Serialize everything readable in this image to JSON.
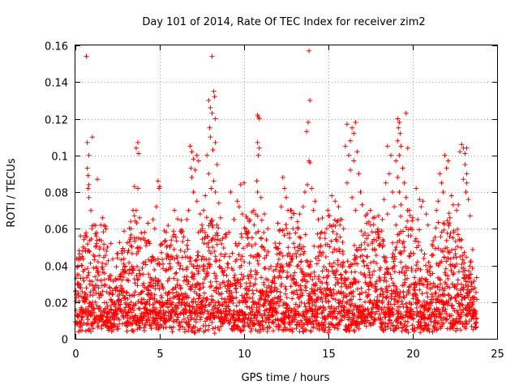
{
  "chart_data": {
    "type": "scatter",
    "title": "Day 101 of 2014, Rate Of TEC Index for receiver zim2",
    "xlabel": "GPS time / hours",
    "ylabel": "ROTI / TECUs",
    "xlim": [
      0,
      25
    ],
    "ylim": [
      0,
      0.16
    ],
    "xticks": [
      0,
      5,
      10,
      15,
      20,
      25
    ],
    "xtick_labels": [
      "0",
      "5",
      "10",
      "15",
      "20",
      "25"
    ],
    "yticks": [
      0,
      0.02,
      0.04,
      0.06,
      0.08,
      0.1,
      0.12,
      0.14,
      0.16
    ],
    "ytick_labels": [
      "0",
      "0.02",
      "0.04",
      "0.06",
      "0.08",
      "0.1",
      "0.12",
      "0.14",
      "0.16"
    ],
    "grid": true,
    "marker": "plus",
    "color": "#ff0000",
    "series": [
      {
        "name": "ROTI",
        "points": [
          [
            0.65,
            0.154
          ],
          [
            0.7,
            0.107
          ],
          [
            0.8,
            0.1
          ],
          [
            0.7,
            0.093
          ],
          [
            0.75,
            0.089
          ],
          [
            0.8,
            0.084
          ],
          [
            0.75,
            0.082
          ],
          [
            0.8,
            0.077
          ],
          [
            1.0,
            0.11
          ],
          [
            1.3,
            0.087
          ],
          [
            0.3,
            0.056
          ],
          [
            0.5,
            0.054
          ],
          [
            0.2,
            0.043
          ],
          [
            0.35,
            0.04
          ],
          [
            0.1,
            0.035
          ],
          [
            0.2,
            0.03
          ],
          [
            0.4,
            0.045
          ],
          [
            0.45,
            0.05
          ],
          [
            1.1,
            0.062
          ],
          [
            1.5,
            0.062
          ],
          [
            1.6,
            0.066
          ],
          [
            1.9,
            0.05
          ],
          [
            2.1,
            0.052
          ],
          [
            1.2,
            0.05
          ],
          [
            3.7,
            0.107
          ],
          [
            3.6,
            0.104
          ],
          [
            3.75,
            0.101
          ],
          [
            3.7,
            0.082
          ],
          [
            3.5,
            0.083
          ],
          [
            3.6,
            0.07
          ],
          [
            3.8,
            0.066
          ],
          [
            3.3,
            0.06
          ],
          [
            4.1,
            0.058
          ],
          [
            4.4,
            0.052
          ],
          [
            3.1,
            0.047
          ],
          [
            2.9,
            0.048
          ],
          [
            4.3,
            0.063
          ],
          [
            3.2,
            0.053
          ],
          [
            4.9,
            0.086
          ],
          [
            4.95,
            0.082
          ],
          [
            5.0,
            0.083
          ],
          [
            4.8,
            0.072
          ],
          [
            4.6,
            0.065
          ],
          [
            4.7,
            0.06
          ],
          [
            5.3,
            0.053
          ],
          [
            5.6,
            0.05
          ],
          [
            5.1,
            0.047
          ],
          [
            5.5,
            0.045
          ],
          [
            6.8,
            0.105
          ],
          [
            6.9,
            0.102
          ],
          [
            7.0,
            0.098
          ],
          [
            6.85,
            0.093
          ],
          [
            7.2,
            0.1
          ],
          [
            7.3,
            0.097
          ],
          [
            7.1,
            0.092
          ],
          [
            6.9,
            0.088
          ],
          [
            7.0,
            0.08
          ],
          [
            7.2,
            0.075
          ],
          [
            6.7,
            0.07
          ],
          [
            7.4,
            0.068
          ],
          [
            6.6,
            0.065
          ],
          [
            7.5,
            0.062
          ],
          [
            7.3,
            0.058
          ],
          [
            8.1,
            0.154
          ],
          [
            8.2,
            0.135
          ],
          [
            8.25,
            0.132
          ],
          [
            7.9,
            0.13
          ],
          [
            8.0,
            0.126
          ],
          [
            8.1,
            0.123
          ],
          [
            8.3,
            0.12
          ],
          [
            7.95,
            0.115
          ],
          [
            8.0,
            0.11
          ],
          [
            8.3,
            0.107
          ],
          [
            8.15,
            0.103
          ],
          [
            7.8,
            0.1
          ],
          [
            8.4,
            0.095
          ],
          [
            7.9,
            0.09
          ],
          [
            8.2,
            0.086
          ],
          [
            8.05,
            0.082
          ],
          [
            8.3,
            0.08
          ],
          [
            7.7,
            0.078
          ],
          [
            8.5,
            0.074
          ],
          [
            7.6,
            0.07
          ],
          [
            8.6,
            0.066
          ],
          [
            8.1,
            0.062
          ],
          [
            9.2,
            0.08
          ],
          [
            9.6,
            0.075
          ],
          [
            9.8,
            0.084
          ],
          [
            10.0,
            0.085
          ],
          [
            9.7,
            0.072
          ],
          [
            9.9,
            0.068
          ],
          [
            9.4,
            0.065
          ],
          [
            10.3,
            0.064
          ],
          [
            10.1,
            0.06
          ],
          [
            9.1,
            0.058
          ],
          [
            10.2,
            0.055
          ],
          [
            9.5,
            0.052
          ],
          [
            10.8,
            0.122
          ],
          [
            10.85,
            0.121
          ],
          [
            10.9,
            0.12
          ],
          [
            10.8,
            0.107
          ],
          [
            10.9,
            0.104
          ],
          [
            10.85,
            0.1
          ],
          [
            10.75,
            0.086
          ],
          [
            10.8,
            0.08
          ],
          [
            11.0,
            0.077
          ],
          [
            11.2,
            0.068
          ],
          [
            10.6,
            0.062
          ],
          [
            11.4,
            0.06
          ],
          [
            11.0,
            0.055
          ],
          [
            12.3,
            0.088
          ],
          [
            12.4,
            0.082
          ],
          [
            12.5,
            0.077
          ],
          [
            12.2,
            0.072
          ],
          [
            12.6,
            0.07
          ],
          [
            12.8,
            0.066
          ],
          [
            12.0,
            0.063
          ],
          [
            12.9,
            0.06
          ],
          [
            12.7,
            0.055
          ],
          [
            12.1,
            0.052
          ],
          [
            13.85,
            0.157
          ],
          [
            13.9,
            0.13
          ],
          [
            13.7,
            0.113
          ],
          [
            13.8,
            0.118
          ],
          [
            13.85,
            0.097
          ],
          [
            13.9,
            0.096
          ],
          [
            13.75,
            0.084
          ],
          [
            14.0,
            0.082
          ],
          [
            13.6,
            0.08
          ],
          [
            14.2,
            0.075
          ],
          [
            13.5,
            0.072
          ],
          [
            14.1,
            0.07
          ],
          [
            13.3,
            0.068
          ],
          [
            14.4,
            0.065
          ],
          [
            13.2,
            0.06
          ],
          [
            14.6,
            0.058
          ],
          [
            15.2,
            0.078
          ],
          [
            15.4,
            0.075
          ],
          [
            15.6,
            0.072
          ],
          [
            15.0,
            0.067
          ],
          [
            15.7,
            0.065
          ],
          [
            15.3,
            0.062
          ],
          [
            14.9,
            0.06
          ],
          [
            15.9,
            0.06
          ],
          [
            15.5,
            0.057
          ],
          [
            16.1,
            0.117
          ],
          [
            16.4,
            0.115
          ],
          [
            16.5,
            0.112
          ],
          [
            16.6,
            0.118
          ],
          [
            16.3,
            0.108
          ],
          [
            16.0,
            0.105
          ],
          [
            16.2,
            0.1
          ],
          [
            16.7,
            0.102
          ],
          [
            16.5,
            0.097
          ],
          [
            16.3,
            0.092
          ],
          [
            16.8,
            0.09
          ],
          [
            16.1,
            0.085
          ],
          [
            16.9,
            0.08
          ],
          [
            16.4,
            0.077
          ],
          [
            17.0,
            0.073
          ],
          [
            16.6,
            0.07
          ],
          [
            17.2,
            0.067
          ],
          [
            15.8,
            0.065
          ],
          [
            17.5,
            0.062
          ],
          [
            17.8,
            0.058
          ],
          [
            18.0,
            0.055
          ],
          [
            17.6,
            0.052
          ],
          [
            18.2,
            0.05
          ],
          [
            18.5,
            0.105
          ],
          [
            18.7,
            0.1
          ],
          [
            18.6,
            0.09
          ],
          [
            18.4,
            0.085
          ],
          [
            18.8,
            0.08
          ],
          [
            18.3,
            0.076
          ],
          [
            18.9,
            0.072
          ],
          [
            18.5,
            0.068
          ],
          [
            18.2,
            0.065
          ],
          [
            19.0,
            0.062
          ],
          [
            19.1,
            0.12
          ],
          [
            19.2,
            0.118
          ],
          [
            19.15,
            0.115
          ],
          [
            19.25,
            0.112
          ],
          [
            19.1,
            0.108
          ],
          [
            19.3,
            0.105
          ],
          [
            19.2,
            0.1
          ],
          [
            19.6,
            0.123
          ],
          [
            19.7,
            0.104
          ],
          [
            19.0,
            0.097
          ],
          [
            19.4,
            0.093
          ],
          [
            19.1,
            0.088
          ],
          [
            19.5,
            0.085
          ],
          [
            19.2,
            0.08
          ],
          [
            19.6,
            0.077
          ],
          [
            19.3,
            0.073
          ],
          [
            19.8,
            0.07
          ],
          [
            20.0,
            0.066
          ],
          [
            20.2,
            0.082
          ],
          [
            20.4,
            0.076
          ],
          [
            20.6,
            0.075
          ],
          [
            20.5,
            0.072
          ],
          [
            20.8,
            0.068
          ],
          [
            20.3,
            0.065
          ],
          [
            20.9,
            0.062
          ],
          [
            21.6,
            0.09
          ],
          [
            21.7,
            0.085
          ],
          [
            21.9,
            0.1
          ],
          [
            22.1,
            0.097
          ],
          [
            22.0,
            0.093
          ],
          [
            21.8,
            0.08
          ],
          [
            22.3,
            0.078
          ],
          [
            21.5,
            0.075
          ],
          [
            22.4,
            0.073
          ],
          [
            21.4,
            0.07
          ],
          [
            22.2,
            0.066
          ],
          [
            22.9,
            0.106
          ],
          [
            23.0,
            0.104
          ],
          [
            22.8,
            0.102
          ],
          [
            23.1,
            0.101
          ],
          [
            23.2,
            0.104
          ],
          [
            23.1,
            0.095
          ],
          [
            23.2,
            0.09
          ],
          [
            23.0,
            0.087
          ],
          [
            23.2,
            0.085
          ],
          [
            23.15,
            0.08
          ],
          [
            23.3,
            0.076
          ],
          [
            22.7,
            0.073
          ],
          [
            22.6,
            0.07
          ],
          [
            23.4,
            0.067
          ]
        ],
        "dense_band": {
          "x_range": [
            0,
            23.8
          ],
          "y_typical_range": [
            0.003,
            0.05
          ]
        }
      }
    ]
  }
}
